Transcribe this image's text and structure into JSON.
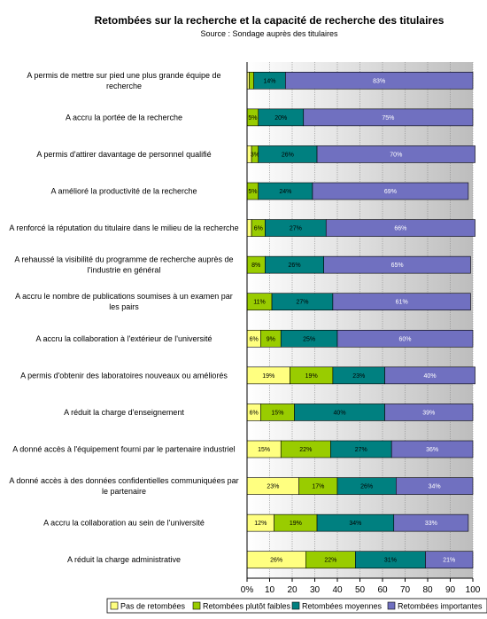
{
  "chart_data": {
    "type": "bar",
    "orientation": "horizontal",
    "stacked": true,
    "title": "Retombées sur la recherche et la capacité de recherche des titulaires",
    "subtitle": "Source : Sondage auprès des titulaires",
    "categories": [
      [
        "A permis de mettre sur pied une plus grande équipe de",
        "recherche"
      ],
      [
        "A accru la portée de la recherche"
      ],
      [
        "A permis d'attirer davantage de personnel qualifié"
      ],
      [
        "A amélioré la productivité de la recherche"
      ],
      [
        "A renforcé la réputation du titulaire dans le milieu de la recherche"
      ],
      [
        "A rehaussé la visibilité du programme de recherche auprès de",
        "l'industrie en général"
      ],
      [
        "A accru le nombre de publications soumises à un examen par",
        "les pairs"
      ],
      [
        "A accru la collaboration à l'extérieur de l'université"
      ],
      [
        "A permis d'obtenir des laboratoires nouveaux ou améliorés"
      ],
      [
        "A réduit la charge d'enseignement"
      ],
      [
        "A donné accès à l'équipement fourni par le partenaire industriel"
      ],
      [
        "A donné accès à des données confidentielles communiquées par",
        "le partenaire"
      ],
      [
        "A accru la collaboration au sein de l'université"
      ],
      [
        "A réduit la charge administrative"
      ]
    ],
    "series": [
      {
        "name": "Pas de retombées",
        "color": "#ffff80",
        "values": [
          1,
          0,
          2,
          0,
          2,
          0,
          0,
          6,
          19,
          6,
          15,
          23,
          12,
          26
        ],
        "labels": [
          "",
          "",
          "",
          "",
          "",
          "",
          "",
          "6%",
          "19%",
          "6%",
          "15%",
          "23%",
          "12%",
          "26%"
        ]
      },
      {
        "name": "Retombées plutôt faibles",
        "color": "#99cc00",
        "values": [
          2,
          5,
          3,
          5,
          6,
          8,
          11,
          9,
          19,
          15,
          22,
          17,
          19,
          22
        ],
        "labels": [
          "",
          "5%",
          "3%",
          "5%",
          "6%",
          "8%",
          "11%",
          "9%",
          "19%",
          "15%",
          "22%",
          "17%",
          "19%",
          "22%"
        ]
      },
      {
        "name": "Retombées moyennes",
        "color": "#008080",
        "values": [
          14,
          20,
          26,
          24,
          27,
          26,
          27,
          25,
          23,
          40,
          27,
          26,
          34,
          31
        ],
        "labels": [
          "14%",
          "20%",
          "26%",
          "24%",
          "27%",
          "26%",
          "27%",
          "25%",
          "23%",
          "40%",
          "27%",
          "26%",
          "34%",
          "31%"
        ]
      },
      {
        "name": "Retombées importantes",
        "color": "#7070c0",
        "values": [
          83,
          75,
          70,
          69,
          66,
          65,
          61,
          60,
          40,
          39,
          36,
          34,
          33,
          21
        ],
        "labels": [
          "83%",
          "75%",
          "70%",
          "69%",
          "66%",
          "65%",
          "61%",
          "60%",
          "40%",
          "39%",
          "36%",
          "34%",
          "33%",
          "21%"
        ]
      }
    ],
    "xlim": [
      0,
      100
    ],
    "xticks": [
      "0%",
      "10",
      "20",
      "30",
      "40",
      "50",
      "60",
      "70",
      "80",
      "90",
      "100"
    ],
    "grid": "vertical",
    "legend": "bottom"
  }
}
